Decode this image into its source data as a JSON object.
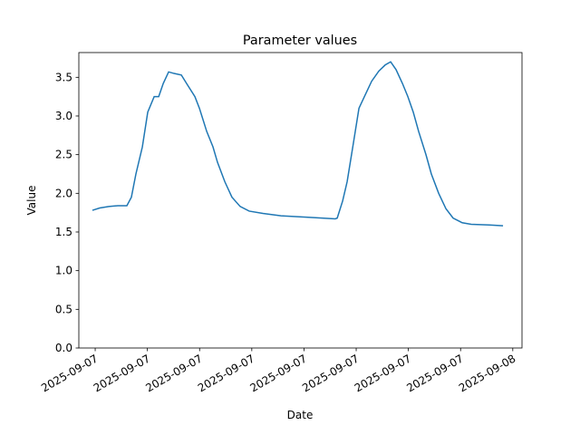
{
  "chart_data": {
    "type": "line",
    "title": "Parameter values",
    "xlabel": "Date",
    "ylabel": "Value",
    "x": [
      -0.16,
      0.26,
      0.78,
      1.3,
      1.82,
      2.08,
      2.34,
      2.71,
      3.02,
      3.39,
      3.65,
      3.91,
      4.22,
      4.53,
      4.95,
      5.31,
      5.73,
      5.99,
      6.41,
      6.77,
      7.03,
      7.45,
      7.86,
      8.33,
      8.85,
      9.64,
      10.68,
      12.24,
      13.8,
      13.91,
      14.22,
      14.48,
      14.84,
      15.16,
      15.47,
      15.89,
      16.3,
      16.67,
      16.98,
      17.29,
      17.66,
      17.97,
      18.28,
      18.59,
      19.01,
      19.32,
      19.74,
      20.16,
      20.57,
      21.09,
      21.61,
      22.66,
      23.44
    ],
    "series": [
      {
        "color": "#1f77b4",
        "values": [
          1.78,
          1.81,
          1.83,
          1.84,
          1.84,
          1.95,
          2.25,
          2.6,
          3.05,
          3.25,
          3.25,
          3.42,
          3.57,
          3.55,
          3.53,
          3.4,
          3.25,
          3.1,
          2.8,
          2.6,
          2.4,
          2.15,
          1.95,
          1.83,
          1.77,
          1.74,
          1.71,
          1.69,
          1.67,
          1.68,
          1.9,
          2.15,
          2.65,
          3.1,
          3.25,
          3.45,
          3.58,
          3.66,
          3.7,
          3.6,
          3.42,
          3.25,
          3.05,
          2.8,
          2.5,
          2.25,
          2.0,
          1.8,
          1.68,
          1.62,
          1.6,
          1.59,
          1.58
        ]
      }
    ],
    "xlim": [
      -0.94,
      24.53
    ],
    "xticks": [
      {
        "value": 0,
        "label": "2025-09-07"
      },
      {
        "value": 3,
        "label": "2025-09-07"
      },
      {
        "value": 6,
        "label": "2025-09-07"
      },
      {
        "value": 9,
        "label": "2025-09-07"
      },
      {
        "value": 12,
        "label": "2025-09-07"
      },
      {
        "value": 15,
        "label": "2025-09-07"
      },
      {
        "value": 18,
        "label": "2025-09-07"
      },
      {
        "value": 21,
        "label": "2025-09-07"
      },
      {
        "value": 24,
        "label": "2025-09-08"
      }
    ],
    "ylim": [
      0,
      3.82
    ],
    "yticks": [
      {
        "value": 0,
        "label": "0.0"
      },
      {
        "value": 0.5,
        "label": "0.5"
      },
      {
        "value": 1,
        "label": "1.0"
      },
      {
        "value": 1.5,
        "label": "1.5"
      },
      {
        "value": 2,
        "label": "2.0"
      },
      {
        "value": 2.5,
        "label": "2.5"
      },
      {
        "value": 3,
        "label": "3.0"
      },
      {
        "value": 3.5,
        "label": "3.5"
      }
    ]
  }
}
